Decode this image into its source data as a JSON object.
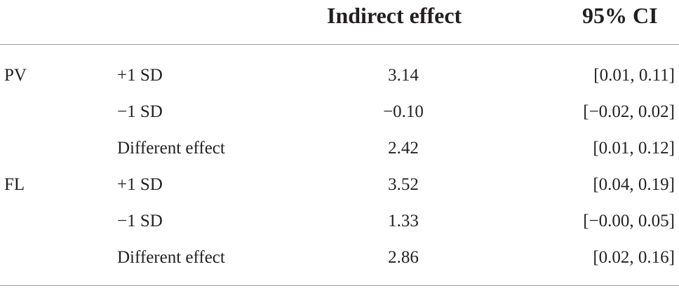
{
  "table": {
    "headers": {
      "indirect_effect": "Indirect effect",
      "ci": "95% CI"
    },
    "rows": [
      {
        "group": "PV",
        "level": "+1 SD",
        "effect": "3.14",
        "ci": "[0.01, 0.11]"
      },
      {
        "group": "",
        "level": "−1 SD",
        "effect": "−0.10",
        "ci": "[−0.02, 0.02]"
      },
      {
        "group": "",
        "level": "Different effect",
        "effect": "2.42",
        "ci": "[0.01, 0.12]"
      },
      {
        "group": "FL",
        "level": "+1 SD",
        "effect": "3.52",
        "ci": "[0.04, 0.19]"
      },
      {
        "group": "",
        "level": "−1 SD",
        "effect": "1.33",
        "ci": "[−0.00, 0.05]"
      },
      {
        "group": "",
        "level": "Different effect",
        "effect": "2.86",
        "ci": "[0.02, 0.16]"
      }
    ]
  }
}
